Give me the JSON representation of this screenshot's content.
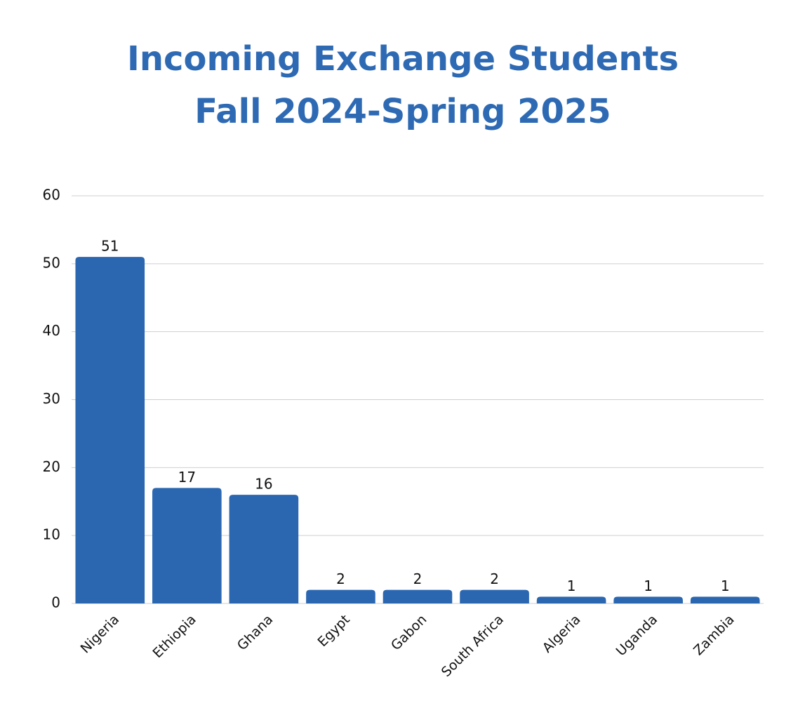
{
  "chart_data": {
    "type": "bar",
    "title": [
      "Incoming Exchange Students",
      "Fall 2024-Spring 2025"
    ],
    "categories": [
      "Nigeria",
      "Ethiopia",
      "Ghana",
      "Egypt",
      "Gabon",
      "South Africa",
      "Algeria",
      "Uganda",
      "Zambia"
    ],
    "values": [
      51,
      17,
      16,
      2,
      2,
      2,
      1,
      1,
      1
    ],
    "color": "#2b67b1",
    "ylim": [
      0,
      60
    ],
    "yticks": [
      0,
      10,
      20,
      30,
      40,
      50,
      60
    ],
    "grid": true
  }
}
